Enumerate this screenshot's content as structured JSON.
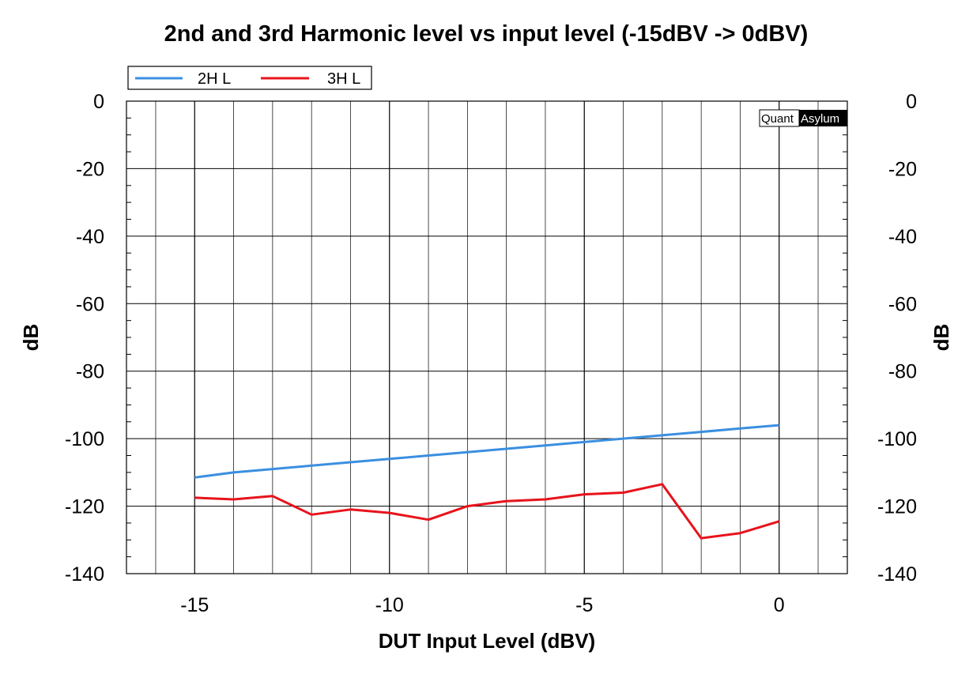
{
  "chart_data": {
    "type": "line",
    "title": "2nd and 3rd Harmonic level vs input level (-15dBV -> 0dBV)",
    "xlabel": "DUT Input Level (dBV)",
    "ylabel": "dB",
    "ylabel_right": "dB",
    "xlim": [
      -16.75,
      1.75
    ],
    "ylim": [
      -140,
      0
    ],
    "x_ticks": [
      -15,
      -10,
      -5,
      0
    ],
    "y_ticks": [
      0,
      -20,
      -40,
      -60,
      -80,
      -100,
      -120,
      -140
    ],
    "grid": true,
    "legend_position": "top-left",
    "watermark": {
      "part1": "Quant",
      "part2": "Asylum"
    },
    "series": [
      {
        "name": "2H L",
        "color": "#3b8fe0",
        "x": [
          -15,
          -14,
          -13,
          -12,
          -11,
          -10,
          -9,
          -8,
          -7,
          -6,
          -5,
          -4,
          -3,
          -2,
          -1,
          0
        ],
        "values": [
          -111.5,
          -110,
          -109,
          -108,
          -107,
          -106,
          -105,
          -104,
          -103,
          -102,
          -101,
          -100,
          -99,
          -98,
          -97,
          -96
        ]
      },
      {
        "name": "3H L",
        "color": "#e8131b",
        "x": [
          -15,
          -14,
          -13,
          -12,
          -11,
          -10,
          -9,
          -8,
          -7,
          -6,
          -5,
          -4,
          -3,
          -2,
          -1,
          0
        ],
        "values": [
          -117.5,
          -118,
          -117,
          -122.5,
          -121,
          -122,
          -124,
          -120,
          -118.5,
          -118,
          -116.5,
          -116,
          -113.5,
          -129.5,
          -128,
          -124.5
        ]
      }
    ]
  }
}
